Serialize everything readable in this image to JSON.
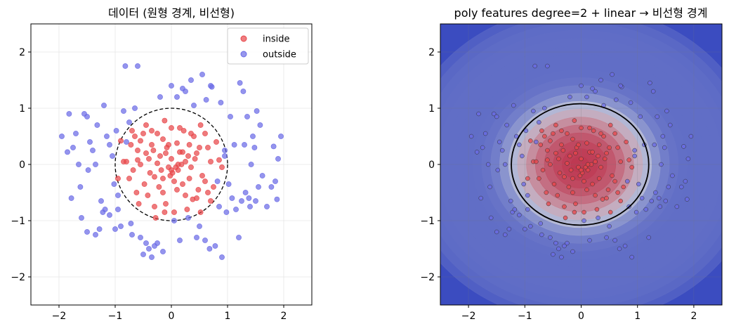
{
  "chart_data": [
    {
      "type": "scatter",
      "title": "데이터 (원형 경계, 비선형)",
      "xlabel": "",
      "ylabel": "",
      "xlim": [
        -2.5,
        2.5
      ],
      "ylim": [
        -2.5,
        2.5
      ],
      "xticks": [
        -2,
        -1,
        0,
        1,
        2
      ],
      "yticks": [
        -2,
        -1,
        0,
        1,
        2
      ],
      "xtick_labels": [
        "−2",
        "−1",
        "0",
        "1",
        "2"
      ],
      "ytick_labels": [
        "−2",
        "−1",
        "0",
        "1",
        "2"
      ],
      "grid": true,
      "legend": "top-right",
      "boundary": {
        "shape": "circle",
        "radius": 1.0,
        "style": "dashed"
      },
      "series": [
        {
          "name": "inside",
          "color": "#e8464a",
          "points": [
            [
              -0.9,
              0.42
            ],
            [
              -0.85,
              0.05
            ],
            [
              -0.95,
              -0.25
            ],
            [
              -0.7,
              0.6
            ],
            [
              -0.65,
              0.5
            ],
            [
              -0.6,
              0.25
            ],
            [
              -0.55,
              0.42
            ],
            [
              -0.5,
              0.55
            ],
            [
              -0.45,
              0.7
            ],
            [
              -0.4,
              0.1
            ],
            [
              -0.38,
              -0.15
            ],
            [
              -0.35,
              0.6
            ],
            [
              -0.3,
              -0.22
            ],
            [
              -0.3,
              -0.75
            ],
            [
              -0.25,
              0.55
            ],
            [
              -0.2,
              0.15
            ],
            [
              -0.18,
              -0.1
            ],
            [
              -0.15,
              -0.5
            ],
            [
              -0.12,
              0.78
            ],
            [
              -0.1,
              0.2
            ],
            [
              -0.08,
              0.3
            ],
            [
              -0.05,
              -0.05
            ],
            [
              -0.02,
              -0.2
            ],
            [
              0.0,
              0.65
            ],
            [
              0.0,
              0.1
            ],
            [
              0.02,
              -0.15
            ],
            [
              0.05,
              -0.3
            ],
            [
              0.08,
              -0.05
            ],
            [
              0.1,
              0.38
            ],
            [
              0.12,
              -0.1
            ],
            [
              0.15,
              0.22
            ],
            [
              0.18,
              0.0
            ],
            [
              0.2,
              -0.35
            ],
            [
              0.22,
              0.6
            ],
            [
              0.25,
              -0.55
            ],
            [
              0.3,
              0.15
            ],
            [
              0.32,
              -0.25
            ],
            [
              0.35,
              -0.05
            ],
            [
              0.4,
              0.5
            ],
            [
              0.42,
              0.1
            ],
            [
              0.45,
              0.2
            ],
            [
              0.48,
              -0.45
            ],
            [
              0.5,
              0.3
            ],
            [
              0.52,
              0.7
            ],
            [
              0.55,
              -0.2
            ],
            [
              0.6,
              0.55
            ],
            [
              0.65,
              0.3
            ],
            [
              0.7,
              0.05
            ],
            [
              0.75,
              -0.4
            ],
            [
              0.8,
              0.4
            ],
            [
              0.85,
              0.08
            ],
            [
              0.9,
              -0.05
            ],
            [
              -0.75,
              -0.25
            ],
            [
              -0.68,
              -0.1
            ],
            [
              -0.62,
              -0.5
            ],
            [
              -0.55,
              0.0
            ],
            [
              -0.48,
              -0.35
            ],
            [
              -0.42,
              -0.55
            ],
            [
              -0.35,
              0.35
            ],
            [
              -0.28,
              -0.95
            ],
            [
              -0.22,
              -0.4
            ],
            [
              -0.15,
              0.45
            ],
            [
              -0.1,
              -0.7
            ],
            [
              0.05,
              -0.85
            ],
            [
              0.15,
              0.65
            ],
            [
              0.28,
              -0.8
            ],
            [
              0.35,
              0.55
            ],
            [
              0.38,
              -0.62
            ],
            [
              0.52,
              -0.85
            ],
            [
              0.6,
              -0.3
            ],
            [
              0.65,
              -0.5
            ],
            [
              -0.8,
              0.05
            ],
            [
              -0.72,
              0.35
            ],
            [
              -0.58,
              -0.7
            ],
            [
              -0.45,
              0.2
            ],
            [
              -0.05,
              0.35
            ],
            [
              0.1,
              -0.45
            ],
            [
              0.25,
              0.05
            ],
            [
              0.45,
              -0.6
            ],
            [
              -0.25,
              0.02
            ],
            [
              -0.15,
              -0.25
            ],
            [
              0.0,
              -0.1
            ],
            [
              0.12,
              0.0
            ],
            [
              -0.32,
              0.25
            ],
            [
              0.32,
              0.35
            ],
            [
              -0.12,
              -0.85
            ],
            [
              0.2,
              0.22
            ],
            [
              -0.6,
              0.08
            ],
            [
              0.7,
              -0.65
            ]
          ]
        },
        {
          "name": "outside",
          "color": "#6b6be6",
          "points": [
            [
              -1.95,
              0.5
            ],
            [
              -1.85,
              0.22
            ],
            [
              -1.82,
              0.9
            ],
            [
              -1.75,
              0.3
            ],
            [
              -1.7,
              0.55
            ],
            [
              -1.65,
              0.0
            ],
            [
              -1.62,
              -0.4
            ],
            [
              -1.55,
              0.9
            ],
            [
              -1.5,
              0.85
            ],
            [
              -1.48,
              -0.1
            ],
            [
              -1.45,
              0.4
            ],
            [
              -1.4,
              0.25
            ],
            [
              -1.35,
              0.0
            ],
            [
              -1.32,
              0.7
            ],
            [
              -1.28,
              -1.15
            ],
            [
              -1.22,
              -0.85
            ],
            [
              -1.2,
              1.05
            ],
            [
              -1.18,
              -0.8
            ],
            [
              -1.15,
              0.5
            ],
            [
              -1.1,
              0.35
            ],
            [
              -1.05,
              0.15
            ],
            [
              -1.02,
              -0.35
            ],
            [
              -1.0,
              -1.15
            ],
            [
              -0.98,
              0.6
            ],
            [
              -0.95,
              -0.55
            ],
            [
              -0.9,
              -1.1
            ],
            [
              -0.85,
              0.95
            ],
            [
              -0.82,
              1.75
            ],
            [
              -0.8,
              0.4
            ],
            [
              -0.75,
              0.75
            ],
            [
              -0.72,
              -1.05
            ],
            [
              -0.7,
              -1.25
            ],
            [
              -0.65,
              1.0
            ],
            [
              -0.6,
              1.75
            ],
            [
              -0.55,
              -1.3
            ],
            [
              -0.5,
              -1.6
            ],
            [
              -0.45,
              -1.4
            ],
            [
              -0.4,
              -1.5
            ],
            [
              -0.35,
              -1.65
            ],
            [
              -0.3,
              -1.45
            ],
            [
              -0.25,
              -1.4
            ],
            [
              -0.2,
              1.2
            ],
            [
              -0.15,
              -1.55
            ],
            [
              0.0,
              1.4
            ],
            [
              0.05,
              -1.0
            ],
            [
              0.1,
              1.2
            ],
            [
              0.15,
              -1.35
            ],
            [
              0.2,
              1.35
            ],
            [
              0.25,
              1.3
            ],
            [
              0.3,
              -0.95
            ],
            [
              0.35,
              1.5
            ],
            [
              0.4,
              1.05
            ],
            [
              0.45,
              -1.3
            ],
            [
              0.5,
              -1.1
            ],
            [
              0.55,
              1.6
            ],
            [
              0.6,
              -1.35
            ],
            [
              0.62,
              1.15
            ],
            [
              0.68,
              -1.5
            ],
            [
              0.72,
              1.38
            ],
            [
              0.78,
              -1.45
            ],
            [
              0.82,
              -0.3
            ],
            [
              0.85,
              -0.75
            ],
            [
              0.88,
              1.1
            ],
            [
              0.9,
              -1.65
            ],
            [
              0.95,
              0.25
            ],
            [
              0.98,
              -0.85
            ],
            [
              1.02,
              -0.35
            ],
            [
              1.05,
              0.85
            ],
            [
              1.08,
              -0.6
            ],
            [
              1.12,
              0.35
            ],
            [
              1.15,
              -0.8
            ],
            [
              1.2,
              -1.3
            ],
            [
              1.22,
              1.45
            ],
            [
              1.25,
              -0.65
            ],
            [
              1.28,
              1.3
            ],
            [
              1.3,
              0.35
            ],
            [
              1.32,
              -0.5
            ],
            [
              1.35,
              0.85
            ],
            [
              1.38,
              -0.6
            ],
            [
              1.4,
              -0.75
            ],
            [
              1.42,
              0.0
            ],
            [
              1.45,
              0.5
            ],
            [
              1.48,
              0.3
            ],
            [
              1.5,
              -0.65
            ],
            [
              1.52,
              0.95
            ],
            [
              1.55,
              -0.4
            ],
            [
              1.58,
              0.7
            ],
            [
              1.62,
              -0.2
            ],
            [
              1.7,
              -0.75
            ],
            [
              1.78,
              -0.4
            ],
            [
              1.82,
              0.32
            ],
            [
              1.85,
              -0.3
            ],
            [
              1.9,
              0.1
            ],
            [
              1.95,
              0.5
            ],
            [
              1.88,
              -0.62
            ],
            [
              -1.78,
              -0.6
            ],
            [
              -1.6,
              -0.95
            ],
            [
              -1.5,
              -1.2
            ],
            [
              -1.35,
              -1.25
            ],
            [
              -1.25,
              -0.65
            ],
            [
              -1.1,
              -0.9
            ],
            [
              -0.95,
              -0.8
            ],
            [
              0.7,
              1.4
            ],
            [
              0.95,
              0.15
            ]
          ]
        }
      ]
    },
    {
      "type": "heatmap",
      "title": "poly features degree=2 + linear → 비선형 경계",
      "xlabel": "",
      "ylabel": "",
      "xlim": [
        -2.5,
        2.5
      ],
      "ylim": [
        -2.5,
        2.5
      ],
      "xticks": [
        -2,
        -1,
        0,
        1,
        2
      ],
      "yticks": [
        -2,
        -1,
        0,
        1,
        2
      ],
      "xtick_labels": [
        "−2",
        "−1",
        "0",
        "1",
        "2"
      ],
      "ytick_labels": [
        "−2",
        "−1",
        "0",
        "1",
        "2"
      ],
      "grid": true,
      "colormap": "coolwarm",
      "decision_boundary": {
        "shape": "ellipse",
        "rx": 1.22,
        "ry": 1.08,
        "cx": -0.02,
        "cy": 0.0
      }
    }
  ]
}
